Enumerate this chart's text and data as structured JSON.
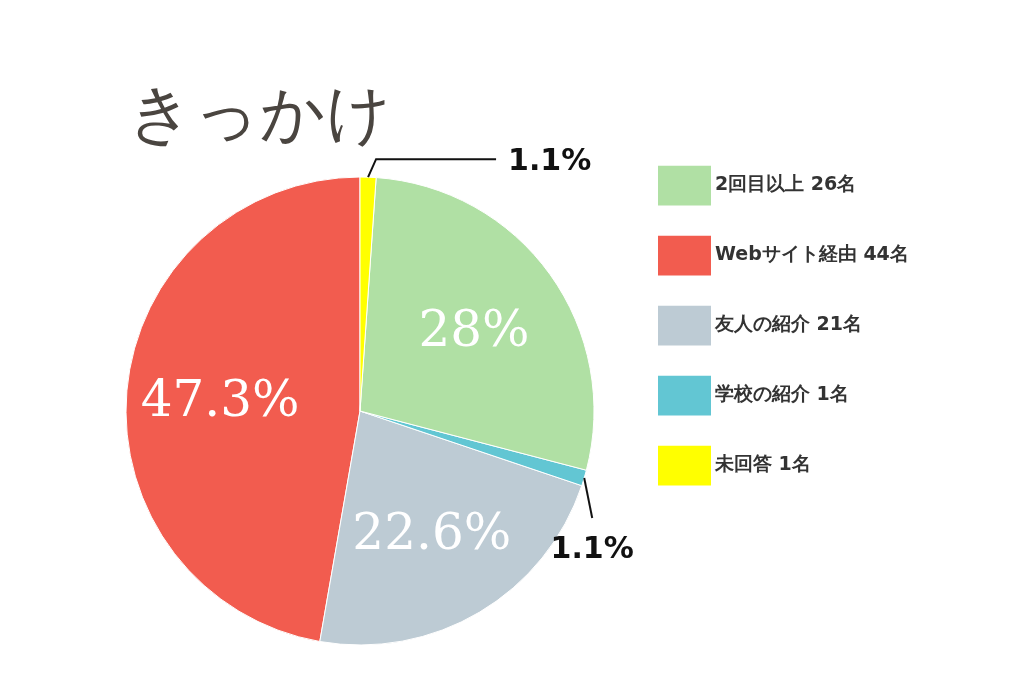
{
  "chart_data": {
    "type": "pie",
    "title": "きっかけ",
    "categories": [
      "Webサイト経由 44名",
      "友人の紹介 21名",
      "学校の紹介 1名",
      "2回目以上 26名",
      "未回答 1名"
    ],
    "values": [
      47.3,
      22.6,
      1.1,
      28,
      1.1
    ],
    "value_labels": [
      "47.3%",
      "22.6%",
      "1.1%",
      "28%",
      "1.1%"
    ],
    "colors": [
      "#f25c4f",
      "#bdcbd4",
      "#62c6d3",
      "#b0e0a4",
      "#ffff00"
    ],
    "legend": "right"
  }
}
